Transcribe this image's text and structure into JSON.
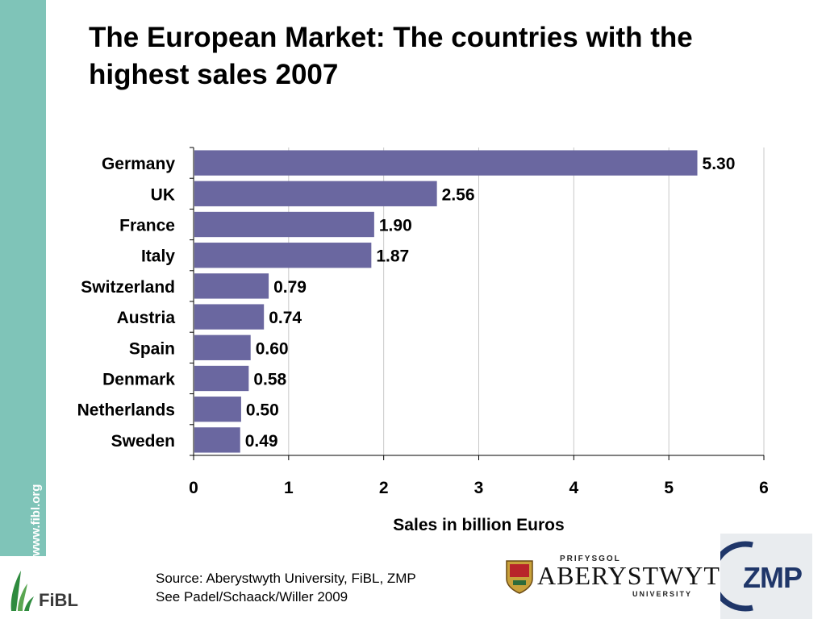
{
  "slide": {
    "title": "The European Market: The countries with the highest sales 2007",
    "side_url": "www.fibl.org",
    "source_lines": [
      "Source: Aberystwyth University, FiBL, ZMP",
      "See Padel/Schaack/Willer 2009"
    ],
    "logos": {
      "fibl": "FiBL",
      "aberystwyth_top": "PRIFYSGOL",
      "aberystwyth_name": "ABERYSTWYTH",
      "aberystwyth_bottom": "UNIVERSITY",
      "zmp": "ZMP"
    },
    "colors": {
      "sidebar": "#7fc4b8",
      "bar": "#6a67a0"
    }
  },
  "chart_data": {
    "type": "bar",
    "orientation": "horizontal",
    "categories": [
      "Germany",
      "UK",
      "France",
      "Italy",
      "Switzerland",
      "Austria",
      "Spain",
      "Denmark",
      "Netherlands",
      "Sweden"
    ],
    "values": [
      5.3,
      2.56,
      1.9,
      1.87,
      0.79,
      0.74,
      0.6,
      0.58,
      0.5,
      0.49
    ],
    "data_labels": [
      "5.30",
      "2.56",
      "1.90",
      "1.87",
      "0.79",
      "0.74",
      "0.60",
      "0.58",
      "0.50",
      "0.49"
    ],
    "xlabel": "Sales in billion Euros",
    "xlim": [
      0,
      6
    ],
    "xticks": [
      0,
      1,
      2,
      3,
      4,
      5,
      6
    ],
    "grid": true,
    "legend": "none"
  }
}
